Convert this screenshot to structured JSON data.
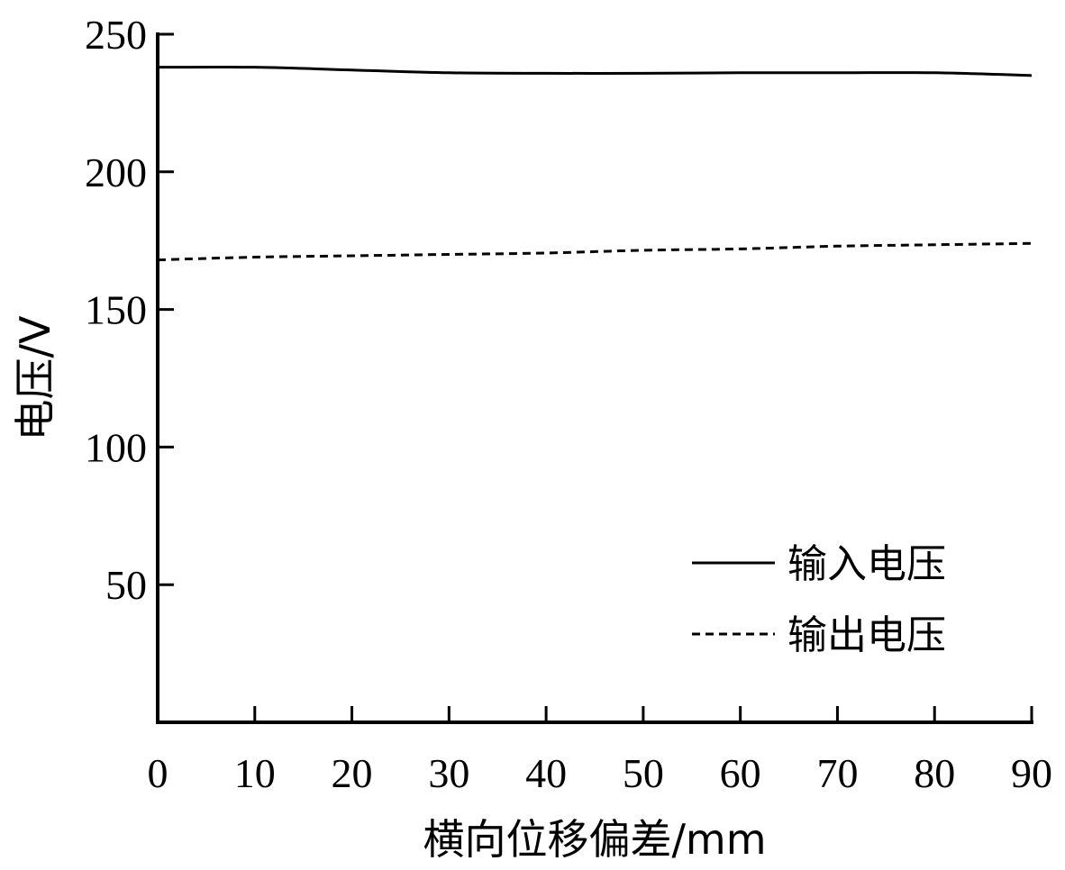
{
  "chart_data": {
    "type": "line",
    "title": "",
    "xlabel": "横向位移偏差/mm",
    "ylabel": "电压/V",
    "xlim": [
      0,
      90
    ],
    "ylim": [
      0,
      250
    ],
    "xticks": [
      0,
      10,
      20,
      30,
      40,
      50,
      60,
      70,
      80,
      90
    ],
    "yticks": [
      50,
      100,
      150,
      200,
      250
    ],
    "grid": false,
    "legend_position": "bottom-right",
    "series": [
      {
        "name": "输入电压",
        "line_style": "solid",
        "color": "#000000",
        "x": [
          0,
          10,
          20,
          30,
          40,
          50,
          60,
          70,
          80,
          90
        ],
        "y": [
          238,
          238,
          237,
          236,
          235.8,
          235.8,
          236,
          236,
          236,
          235
        ]
      },
      {
        "name": "输出电压",
        "line_style": "dashed",
        "color": "#000000",
        "x": [
          0,
          10,
          20,
          30,
          40,
          50,
          60,
          70,
          80,
          90
        ],
        "y": [
          168,
          169,
          169.5,
          170,
          170.5,
          171.5,
          172,
          173,
          173.5,
          174
        ]
      }
    ]
  }
}
